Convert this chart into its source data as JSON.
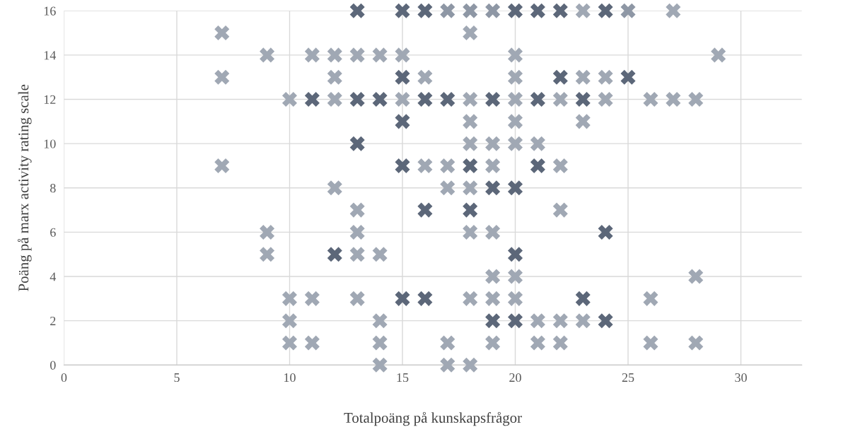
{
  "chart_data": {
    "type": "scatter",
    "xlabel": "Totalpoäng på kunskapsfrågor",
    "ylabel": "Poäng på marx activity rating scale",
    "xlim": [
      0,
      32.7
    ],
    "xticks": [
      0,
      5,
      10,
      15,
      20,
      25,
      30
    ],
    "ylim": [
      0,
      16
    ],
    "yticks": [
      0,
      2,
      4,
      6,
      8,
      10,
      12,
      14,
      16
    ],
    "grid": true,
    "marker": "cross",
    "series": [
      {
        "x": [
          13,
          15,
          16,
          17,
          18,
          19,
          20,
          21,
          22,
          23,
          24,
          25,
          27,
          7,
          18,
          9,
          11,
          12,
          13,
          14,
          15,
          20,
          29,
          7,
          12,
          15,
          16,
          20,
          22,
          23,
          24,
          25,
          10,
          11,
          12,
          13,
          14,
          15,
          16,
          17,
          18,
          19,
          20,
          21,
          22,
          23,
          24,
          26,
          27,
          28,
          15,
          18,
          20,
          23,
          13,
          18,
          19,
          20,
          21,
          7,
          15,
          16,
          17,
          18,
          19,
          21,
          22,
          12,
          17,
          18,
          19,
          20,
          13,
          16,
          18,
          22,
          9,
          13,
          18,
          19,
          24,
          9,
          12,
          13,
          14,
          20,
          19,
          20,
          28,
          10,
          11,
          13,
          15,
          16,
          18,
          19,
          20,
          23,
          26,
          10,
          14,
          19,
          20,
          21,
          22,
          23,
          24,
          10,
          11,
          14,
          17,
          19,
          21,
          22,
          26,
          28,
          14,
          17,
          18
        ],
        "values": [
          16,
          16,
          16,
          16,
          16,
          16,
          16,
          16,
          16,
          16,
          16,
          16,
          16,
          15,
          15,
          14,
          14,
          14,
          14,
          14,
          14,
          14,
          14,
          13,
          13,
          13,
          13,
          13,
          13,
          13,
          13,
          13,
          12,
          12,
          12,
          12,
          12,
          12,
          12,
          12,
          12,
          12,
          12,
          12,
          12,
          12,
          12,
          12,
          12,
          12,
          11,
          11,
          11,
          11,
          10,
          10,
          10,
          10,
          10,
          9,
          9,
          9,
          9,
          9,
          9,
          9,
          9,
          8,
          8,
          8,
          8,
          8,
          7,
          7,
          7,
          7,
          6,
          6,
          6,
          6,
          6,
          5,
          5,
          5,
          5,
          5,
          4,
          4,
          4,
          3,
          3,
          3,
          3,
          3,
          3,
          3,
          3,
          3,
          3,
          2,
          2,
          2,
          2,
          2,
          2,
          2,
          2,
          1,
          1,
          1,
          1,
          1,
          1,
          1,
          1,
          1,
          0,
          0,
          0
        ],
        "colors": [
          "#5c6779",
          "#5c6779",
          "#5c6779",
          "#8e97a5",
          "#8e97a5",
          "#8e97a5",
          "#5c6779",
          "#5c6779",
          "#5c6779",
          "#a0a8b4",
          "#5c6779",
          "#8e97a5",
          "#a0a8b4",
          "#a0a8b4",
          "#a0a8b4",
          "#a0a8b4",
          "#a0a8b4",
          "#a0a8b4",
          "#a0a8b4",
          "#a0a8b4",
          "#a0a8b4",
          "#a0a8b4",
          "#a0a8b4",
          "#a0a8b4",
          "#a0a8b4",
          "#5c6779",
          "#a0a8b4",
          "#a0a8b4",
          "#5c6779",
          "#a0a8b4",
          "#a0a8b4",
          "#5c6779",
          "#a0a8b4",
          "#5c6779",
          "#a0a8b4",
          "#5c6779",
          "#5c6779",
          "#a0a8b4",
          "#5c6779",
          "#5c6779",
          "#a0a8b4",
          "#5c6779",
          "#a0a8b4",
          "#5c6779",
          "#a0a8b4",
          "#5c6779",
          "#a0a8b4",
          "#a0a8b4",
          "#a0a8b4",
          "#a0a8b4",
          "#5c6779",
          "#a0a8b4",
          "#a0a8b4",
          "#a0a8b4",
          "#5c6779",
          "#a0a8b4",
          "#a0a8b4",
          "#a0a8b4",
          "#a0a8b4",
          "#a0a8b4",
          "#5c6779",
          "#a0a8b4",
          "#a0a8b4",
          "#5c6779",
          "#a0a8b4",
          "#5c6779",
          "#a0a8b4",
          "#a0a8b4",
          "#a0a8b4",
          "#a0a8b4",
          "#5c6779",
          "#5c6779",
          "#a0a8b4",
          "#5c6779",
          "#5c6779",
          "#a0a8b4",
          "#a0a8b4",
          "#a0a8b4",
          "#a0a8b4",
          "#a0a8b4",
          "#5c6779",
          "#a0a8b4",
          "#5c6779",
          "#a0a8b4",
          "#a0a8b4",
          "#5c6779",
          "#a0a8b4",
          "#a0a8b4",
          "#a0a8b4",
          "#a0a8b4",
          "#a0a8b4",
          "#a0a8b4",
          "#5c6779",
          "#5c6779",
          "#a0a8b4",
          "#a0a8b4",
          "#a0a8b4",
          "#5c6779",
          "#a0a8b4",
          "#a0a8b4",
          "#a0a8b4",
          "#5c6779",
          "#5c6779",
          "#a0a8b4",
          "#a0a8b4",
          "#a0a8b4",
          "#5c6779",
          "#a0a8b4",
          "#a0a8b4",
          "#a0a8b4",
          "#a0a8b4",
          "#a0a8b4",
          "#a0a8b4",
          "#a0a8b4",
          "#a0a8b4",
          "#a0a8b4",
          "#a0a8b4",
          "#a0a8b4",
          "#a0a8b4"
        ]
      }
    ]
  }
}
